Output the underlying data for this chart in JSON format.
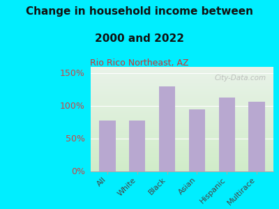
{
  "title_line1": "Change in household income between",
  "title_line2": "2000 and 2022",
  "subtitle": "Rio Rico Northeast, AZ",
  "categories": [
    "All",
    "White",
    "Black",
    "Asian",
    "Hispanic",
    "Multirace"
  ],
  "values": [
    78,
    78,
    130,
    95,
    113,
    107
  ],
  "bar_color": "#b8a8d0",
  "background_outer": "#00eeff",
  "background_inner_top": "#e8f2e8",
  "background_inner_bottom": "#d0ecc8",
  "title_color": "#111111",
  "subtitle_color": "#cc3333",
  "yticks": [
    0,
    50,
    100,
    150
  ],
  "ylim": [
    0,
    160
  ],
  "watermark": "City-Data.com",
  "tick_label_color": "#cc4444"
}
